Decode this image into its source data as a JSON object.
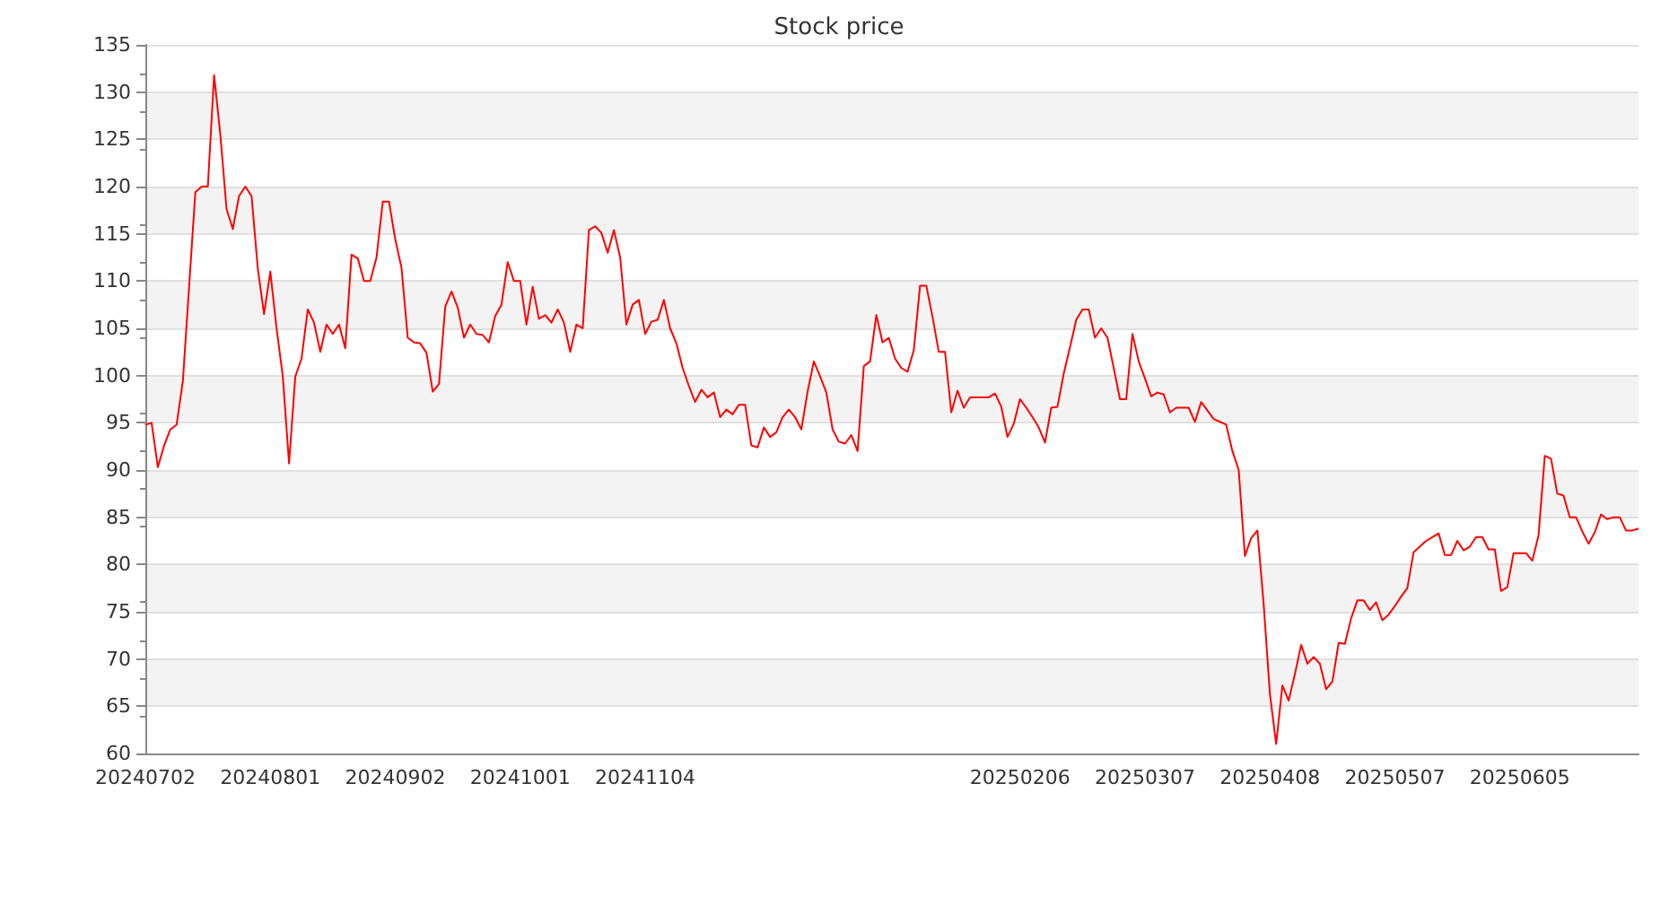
{
  "chart_data": {
    "type": "line",
    "title": "Stock price",
    "categories": [
      "20240702",
      null,
      null,
      null,
      null,
      null,
      null,
      null,
      null,
      null,
      null,
      null,
      null,
      null,
      null,
      null,
      null,
      null,
      null,
      null,
      "20240801",
      null,
      null,
      null,
      null,
      null,
      null,
      null,
      null,
      null,
      null,
      null,
      null,
      null,
      null,
      null,
      null,
      null,
      null,
      null,
      "20240902",
      null,
      null,
      null,
      null,
      null,
      null,
      null,
      null,
      null,
      null,
      null,
      null,
      null,
      null,
      null,
      null,
      null,
      null,
      null,
      "20241001",
      null,
      null,
      null,
      null,
      null,
      null,
      null,
      null,
      null,
      null,
      null,
      null,
      null,
      null,
      null,
      null,
      null,
      null,
      null,
      "20241104",
      null,
      null,
      null,
      null,
      null,
      null,
      null,
      null,
      null,
      null,
      null,
      null,
      null,
      null,
      null,
      null,
      null,
      null,
      null,
      null,
      null,
      null,
      null,
      null,
      null,
      null,
      null,
      null,
      null,
      null,
      null,
      null,
      null,
      null,
      null,
      null,
      null,
      null,
      null,
      null,
      null,
      null,
      null,
      null,
      null,
      null,
      null,
      null,
      null,
      null,
      null,
      null,
      null,
      null,
      null,
      null,
      null,
      null,
      null,
      "20250206",
      null,
      null,
      null,
      null,
      null,
      null,
      null,
      null,
      null,
      null,
      null,
      null,
      null,
      null,
      null,
      null,
      null,
      null,
      null,
      "20250307",
      null,
      null,
      null,
      null,
      null,
      null,
      null,
      null,
      null,
      null,
      null,
      null,
      null,
      null,
      null,
      null,
      null,
      null,
      null,
      "20250408",
      null,
      null,
      null,
      null,
      null,
      null,
      null,
      null,
      null,
      null,
      null,
      null,
      null,
      null,
      null,
      null,
      null,
      null,
      null,
      "20250507",
      null,
      null,
      null,
      null,
      null,
      null,
      null,
      null,
      null,
      null,
      null,
      null,
      null,
      null,
      null,
      null,
      null,
      null,
      null,
      "20250605",
      null,
      null,
      null,
      null,
      null,
      null,
      null,
      null,
      null,
      null,
      null,
      null,
      null,
      null,
      null,
      null,
      null,
      null,
      null
    ],
    "series": [
      {
        "color": "#ff0000",
        "values": [
          94.8,
          95,
          90.3,
          92.6,
          94.3,
          94.8,
          99.4,
          109.4,
          119.4,
          120,
          120,
          131.8,
          125.5,
          117.6,
          115.5,
          119,
          120,
          119,
          111.3,
          106.5,
          111,
          105,
          99.9,
          90.7,
          99.9,
          101.8,
          107,
          105.6,
          102.5,
          105.4,
          104.4,
          105.4,
          102.9,
          112.8,
          112.4,
          110,
          110,
          112.5,
          118.4,
          118.4,
          114.4,
          111.4,
          104,
          103.5,
          103.4,
          102.4,
          98.3,
          99.1,
          107.3,
          108.9,
          107.2,
          104,
          105.4,
          104.4,
          104.3,
          103.5,
          106.3,
          107.5,
          112,
          110,
          110,
          105.4,
          109.4,
          106,
          106.4,
          105.6,
          107,
          105.6,
          102.5,
          105.4,
          105,
          115.4,
          115.8,
          115.1,
          113,
          115.4,
          112.5,
          105.4,
          107.5,
          108,
          104.4,
          105.7,
          105.9,
          108,
          105,
          103.4,
          100.8,
          98.9,
          97.2,
          98.5,
          97.7,
          98.2,
          95.6,
          96.4,
          95.9,
          96.9,
          96.9,
          92.6,
          92.4,
          94.5,
          93.5,
          94,
          95.6,
          96.4,
          95.6,
          94.3,
          98.3,
          101.5,
          99.9,
          98.2,
          94.3,
          93,
          92.8,
          93.7,
          92,
          101,
          101.5,
          106.4,
          103.5,
          104,
          101.8,
          100.8,
          100.4,
          102.7,
          109.5,
          109.5,
          106.2,
          102.5,
          102.5,
          96.1,
          98.4,
          96.6,
          97.7,
          97.7,
          97.7,
          97.7,
          98.1,
          96.7,
          93.5,
          94.9,
          97.5,
          96.6,
          95.6,
          94.5,
          92.9,
          96.6,
          96.7,
          100.2,
          103,
          105.9,
          107,
          107,
          104,
          105,
          104,
          100.8,
          97.5,
          97.5,
          104.4,
          101.5,
          99.7,
          97.8,
          98.2,
          98,
          96.1,
          96.6,
          96.6,
          96.6,
          95.1,
          97.2,
          96.3,
          95.4,
          95.1,
          94.8,
          92,
          90,
          80.9,
          82.8,
          83.6,
          75.8,
          66.3,
          61,
          67.2,
          65.6,
          68.4,
          71.5,
          69.5,
          70.2,
          69.5,
          66.8,
          67.6,
          71.7,
          71.6,
          74.3,
          76.2,
          76.2,
          75.2,
          76,
          74.1,
          74.7,
          75.6,
          76.6,
          77.5,
          81.3,
          81.9,
          82.5,
          82.9,
          83.3,
          81,
          81,
          82.5,
          81.5,
          81.9,
          82.9,
          82.9,
          81.6,
          81.6,
          77.2,
          77.6,
          81.2,
          81.2,
          81.2,
          80.4,
          83.1,
          91.5,
          91.2,
          87.5,
          87.3,
          85,
          85,
          83.5,
          82.2,
          83.4,
          85.3,
          84.8,
          85,
          85,
          83.6,
          83.6,
          83.8
        ]
      }
    ],
    "ylim": [
      60,
      135
    ],
    "yticks": [
      60,
      65,
      70,
      75,
      80,
      85,
      90,
      95,
      100,
      105,
      110,
      115,
      120,
      125,
      130,
      135
    ],
    "grid": "y"
  }
}
